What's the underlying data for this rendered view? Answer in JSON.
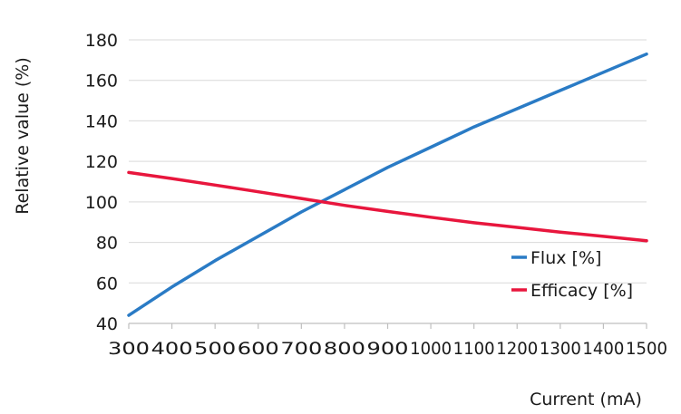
{
  "chart_data": {
    "type": "line",
    "xlabel": "Current (mA)",
    "ylabel": "Relative value (%)",
    "xlim": [
      300,
      1500
    ],
    "ylim": [
      40,
      180
    ],
    "x_ticks": [
      "300",
      "400",
      "500",
      "600",
      "700",
      "800",
      "900",
      "1000",
      "1100",
      "1200",
      "1300",
      "1400",
      "1500"
    ],
    "y_ticks": [
      "40",
      "60",
      "80",
      "100",
      "120",
      "140",
      "160",
      "180"
    ],
    "grid": "horizontal",
    "legend_position": "bottom-right",
    "series": [
      {
        "name": "Flux [%]",
        "color": "#2a7bc5",
        "x": [
          300,
          400,
          500,
          600,
          700,
          800,
          900,
          1000,
          1100,
          1200,
          1300,
          1400,
          1500
        ],
        "y": [
          44,
          58,
          71,
          83,
          95,
          106,
          117,
          127,
          137,
          146,
          155,
          164,
          173
        ]
      },
      {
        "name": "Efficacy [%]",
        "color": "#e8163d",
        "x": [
          300,
          400,
          500,
          600,
          700,
          800,
          900,
          1000,
          1100,
          1200,
          1300,
          1400,
          1500
        ],
        "y": [
          114.5,
          111.5,
          108.3,
          105,
          101.7,
          98.3,
          95.3,
          92.4,
          89.7,
          87.4,
          85.1,
          83,
          80.8
        ]
      }
    ]
  }
}
